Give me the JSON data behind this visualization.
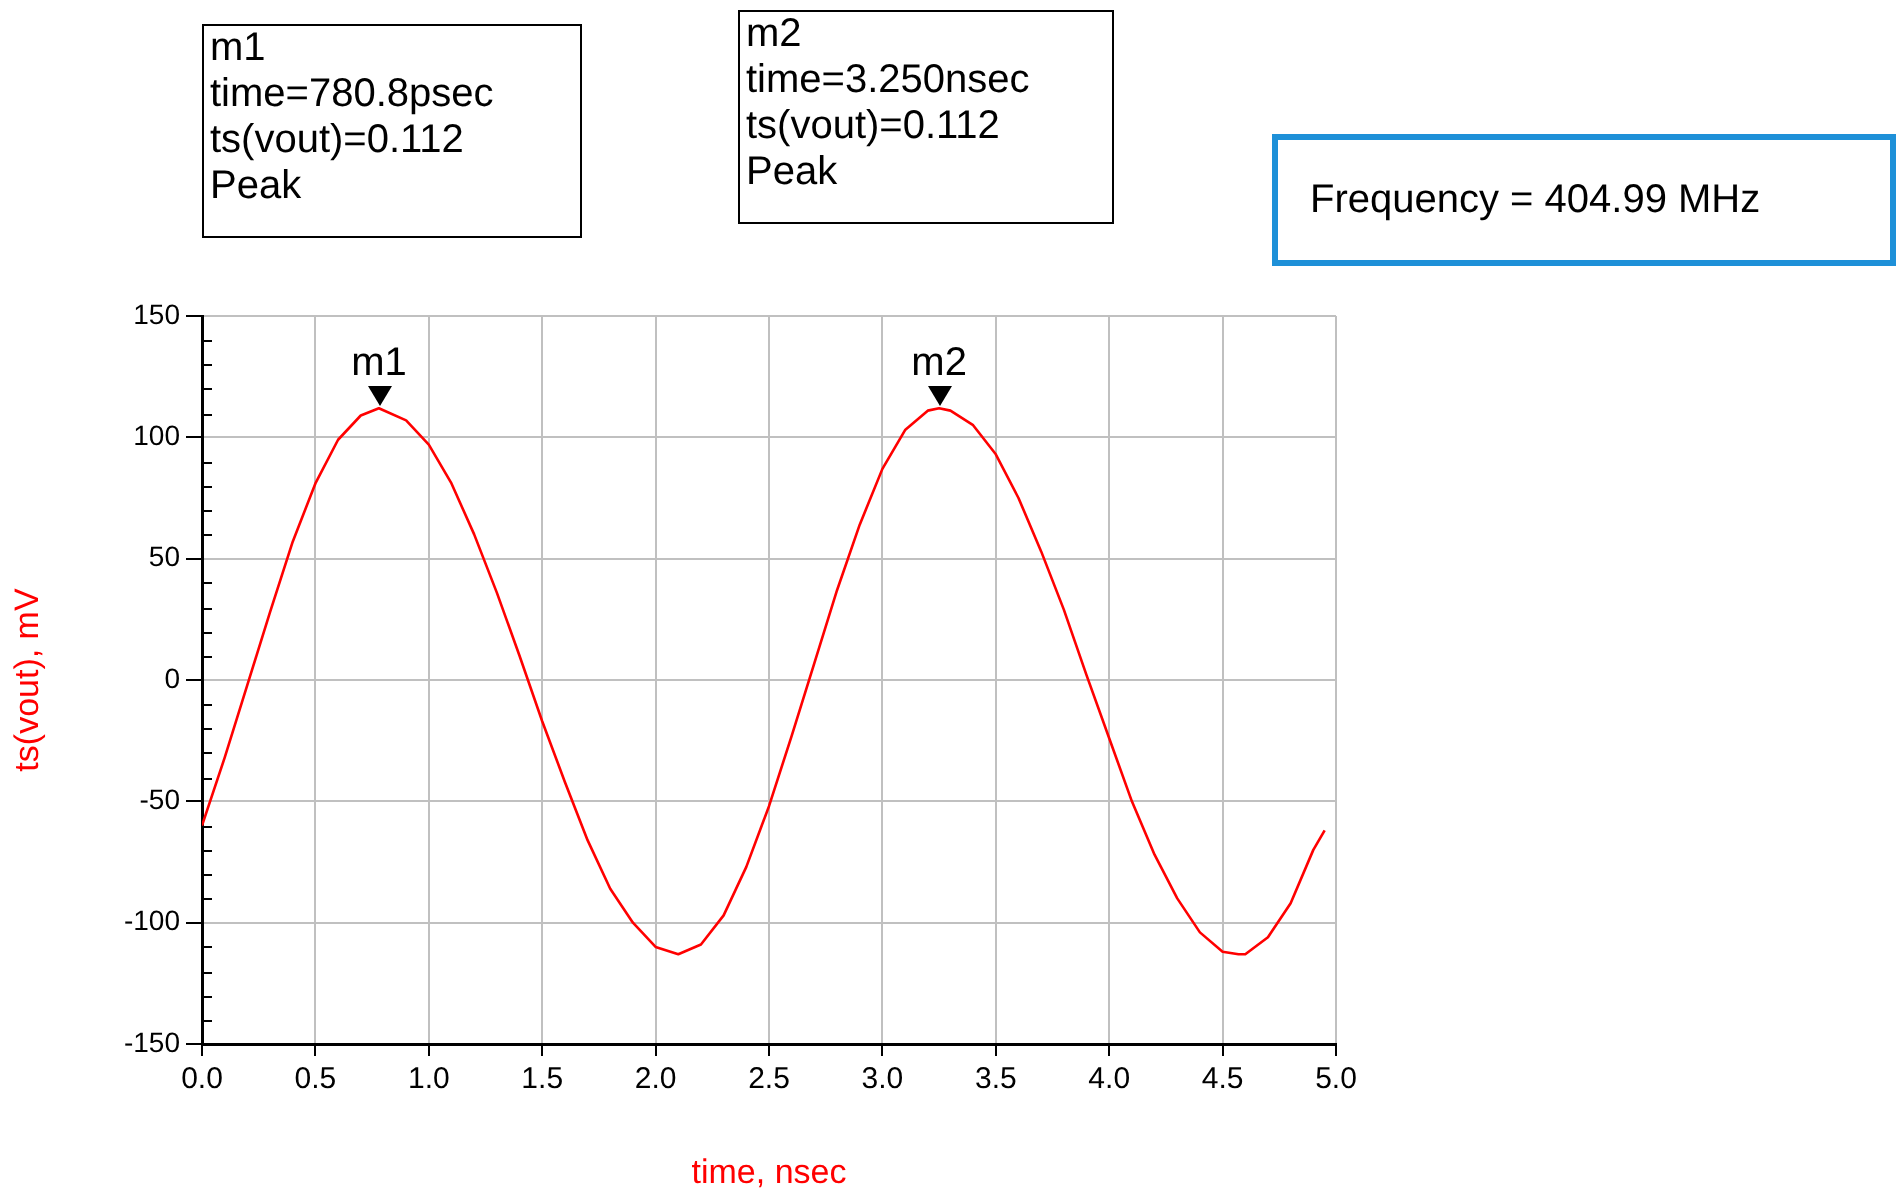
{
  "chart_data": {
    "type": "line",
    "xlabel": "time, nsec",
    "ylabel": "ts(vout), mV",
    "x": [
      0,
      0.1,
      0.2,
      0.3,
      0.4,
      0.5,
      0.6,
      0.7,
      0.78,
      0.9,
      1.0,
      1.1,
      1.2,
      1.3,
      1.4,
      1.5,
      1.6,
      1.7,
      1.8,
      1.9,
      2.0,
      2.1,
      2.2,
      2.3,
      2.4,
      2.5,
      2.6,
      2.7,
      2.8,
      2.9,
      3.0,
      3.1,
      3.2,
      3.25,
      3.3,
      3.4,
      3.5,
      3.6,
      3.7,
      3.8,
      3.9,
      4.0,
      4.1,
      4.2,
      4.3,
      4.4,
      4.5,
      4.57,
      4.6,
      4.7,
      4.8,
      4.9,
      4.95
    ],
    "series": [
      {
        "color": "#ff0000",
        "values": [
          -60,
          -32,
          -2,
          28,
          57,
          81,
          99,
          109,
          112,
          107,
          97,
          81,
          60,
          36,
          10,
          -17,
          -42,
          -66,
          -86,
          -100,
          -110,
          -113,
          -109,
          -97,
          -77,
          -52,
          -23,
          7,
          37,
          64,
          87,
          103,
          111,
          112,
          111,
          105,
          93,
          75,
          53,
          29,
          2,
          -24,
          -50,
          -72,
          -90,
          -104,
          -112,
          -113,
          -113,
          -106,
          -92,
          -70,
          -62
        ]
      }
    ],
    "xlim": [
      0,
      5
    ],
    "xticks": [
      {
        "value": 0,
        "label": "0.0"
      },
      {
        "value": 0.5,
        "label": "0.5"
      },
      {
        "value": 1,
        "label": "1.0"
      },
      {
        "value": 1.5,
        "label": "1.5"
      },
      {
        "value": 2,
        "label": "2.0"
      },
      {
        "value": 2.5,
        "label": "2.5"
      },
      {
        "value": 3,
        "label": "3.0"
      },
      {
        "value": 3.5,
        "label": "3.5"
      },
      {
        "value": 4,
        "label": "4.0"
      },
      {
        "value": 4.5,
        "label": "4.5"
      },
      {
        "value": 5,
        "label": "5.0"
      }
    ],
    "ylim": [
      -150,
      150
    ],
    "yticks": [
      -150,
      -100,
      -50,
      0,
      50,
      100,
      150
    ],
    "grid": true,
    "legend": false,
    "marker": "none",
    "line_style": "solid",
    "annotations": [
      "m1\ntime=780.8psec\nts(vout)=0.112\nPeak",
      "m2\ntime=3.250nsec\nts(vout)=0.112\nPeak",
      "Frequency = 404.99 MHz",
      {
        "text": "m1",
        "x": 0.7808,
        "y": 112
      },
      {
        "text": "m2",
        "x": 3.25,
        "y": 112
      }
    ]
  }
}
